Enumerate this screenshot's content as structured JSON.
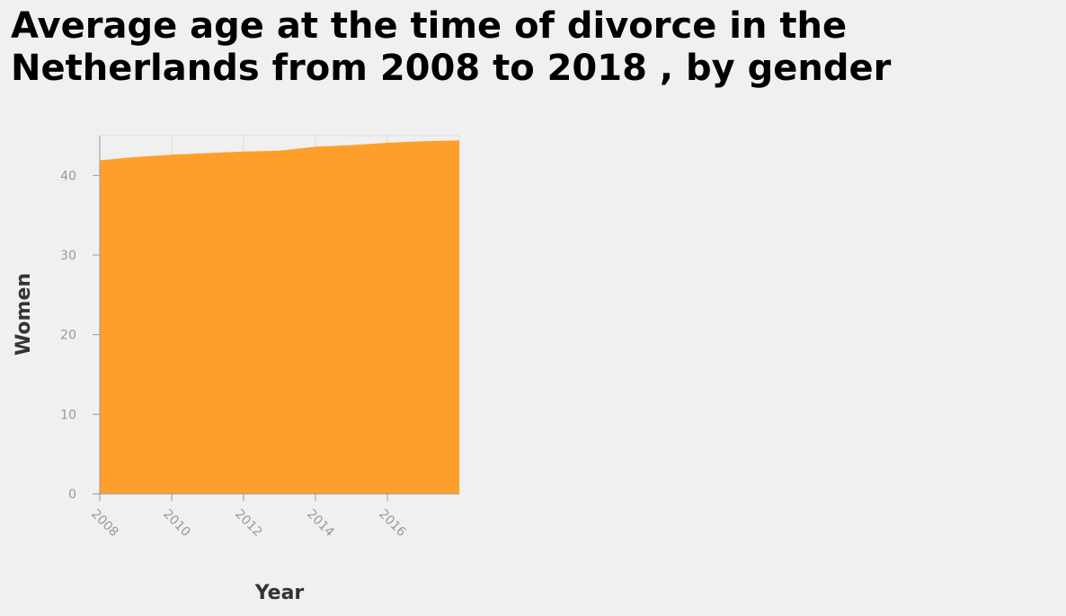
{
  "chart_data": {
    "type": "area",
    "title": "Average age at the time of divorce in the Netherlands from 2008 to 2018 , by gender",
    "xlabel": "Year",
    "ylabel": "Women",
    "x": [
      2008,
      2009,
      2010,
      2011,
      2012,
      2013,
      2014,
      2015,
      2016,
      2017,
      2018
    ],
    "series": [
      {
        "name": "Women",
        "values": [
          41.9,
          42.3,
          42.6,
          42.8,
          43.0,
          43.1,
          43.6,
          43.8,
          44.1,
          44.3,
          44.4
        ]
      }
    ],
    "xlim": [
      2008,
      2018
    ],
    "ylim": [
      0,
      45
    ],
    "x_ticks": [
      "2008",
      "2010",
      "2012",
      "2014",
      "2016"
    ],
    "y_ticks": [
      "0",
      "10",
      "20",
      "30",
      "40"
    ],
    "fill_color": "#ff9f2b",
    "grid": true,
    "legend": "none"
  }
}
